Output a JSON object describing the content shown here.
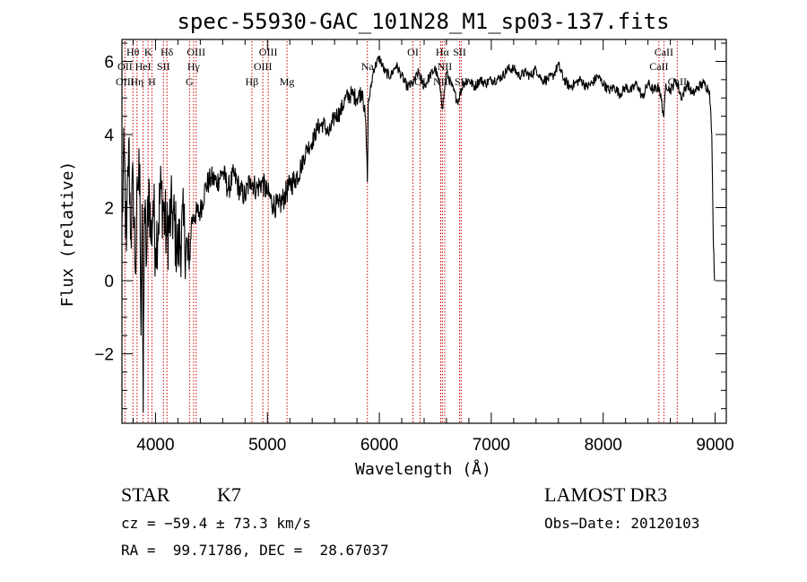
{
  "chart_data": {
    "type": "line",
    "title": "spec-55930-GAC_101N28_M1_sp03-137.fits",
    "xlabel": "Wavelength (Å)",
    "ylabel": "Flux (relative)",
    "xlim": [
      3700,
      9100
    ],
    "ylim": [
      -3.9,
      6.6
    ],
    "xticks": [
      4000,
      5000,
      6000,
      7000,
      8000,
      9000
    ],
    "yticks": [
      -2,
      0,
      2,
      4,
      6
    ],
    "series": [
      {
        "name": "spectrum",
        "x": [
          3700,
          3720,
          3740,
          3760,
          3780,
          3800,
          3820,
          3840,
          3860,
          3870,
          3880,
          3890,
          3900,
          3920,
          3940,
          3960,
          3980,
          4000,
          4050,
          4100,
          4150,
          4200,
          4250,
          4300,
          4320,
          4350,
          4400,
          4450,
          4500,
          4550,
          4600,
          4650,
          4700,
          4750,
          4800,
          4850,
          4900,
          4950,
          5000,
          5050,
          5100,
          5150,
          5200,
          5250,
          5300,
          5350,
          5400,
          5450,
          5500,
          5550,
          5600,
          5650,
          5700,
          5750,
          5800,
          5850,
          5880,
          5893,
          5900,
          5950,
          6000,
          6050,
          6100,
          6150,
          6200,
          6250,
          6300,
          6350,
          6400,
          6450,
          6500,
          6550,
          6563,
          6600,
          6650,
          6700,
          6750,
          6800,
          6850,
          6900,
          6950,
          7000,
          7050,
          7100,
          7150,
          7200,
          7250,
          7300,
          7350,
          7400,
          7450,
          7500,
          7550,
          7600,
          7650,
          7700,
          7750,
          7800,
          7850,
          7900,
          7950,
          8000,
          8050,
          8100,
          8150,
          8200,
          8250,
          8300,
          8350,
          8400,
          8450,
          8500,
          8542,
          8560,
          8600,
          8650,
          8700,
          8750,
          8800,
          8850,
          8900,
          8950,
          8970,
          8985,
          8995
        ],
        "y": [
          1.5,
          3.5,
          0.8,
          3.8,
          1.2,
          2.8,
          0.2,
          2.5,
          3.2,
          -1.5,
          2.1,
          -3.6,
          2.0,
          0.5,
          2.8,
          1.0,
          2.2,
          0.9,
          2.5,
          1.2,
          1.9,
          0.8,
          1.5,
          0.3,
          1.6,
          1.8,
          1.9,
          2.6,
          2.8,
          2.7,
          3.0,
          2.5,
          2.9,
          2.5,
          2.3,
          2.8,
          2.5,
          2.7,
          2.4,
          2.1,
          2.0,
          2.3,
          2.6,
          2.8,
          3.1,
          3.6,
          3.8,
          4.2,
          4.3,
          4.0,
          4.5,
          4.6,
          5.0,
          5.1,
          5.0,
          5.2,
          4.2,
          2.7,
          4.8,
          5.8,
          6.1,
          5.7,
          5.6,
          5.9,
          5.6,
          5.3,
          5.4,
          5.7,
          5.3,
          5.6,
          5.8,
          5.2,
          4.7,
          5.7,
          5.3,
          4.9,
          5.4,
          5.5,
          5.3,
          5.5,
          5.4,
          5.5,
          5.5,
          5.6,
          5.8,
          5.8,
          5.6,
          5.7,
          5.6,
          5.8,
          5.5,
          5.5,
          5.6,
          5.9,
          5.5,
          5.3,
          5.4,
          5.5,
          5.3,
          5.4,
          5.6,
          5.4,
          5.2,
          5.3,
          5.1,
          5.3,
          5.2,
          5.4,
          5.0,
          5.4,
          5.2,
          5.3,
          4.5,
          5.4,
          5.2,
          5.5,
          5.0,
          5.4,
          5.1,
          5.3,
          5.4,
          5.2,
          4.0,
          1.0,
          0.0
        ]
      }
    ],
    "annotations": [
      {
        "label": "Hθ",
        "x": 3798,
        "row": 0
      },
      {
        "label": "OII",
        "x": 3727,
        "row": 1
      },
      {
        "label": "OIII",
        "x": 3727,
        "row": 2
      },
      {
        "label": "K",
        "x": 3934,
        "row": 0
      },
      {
        "label": "HeI",
        "x": 3889,
        "row": 1
      },
      {
        "label": "Hη",
        "x": 3835,
        "row": 2
      },
      {
        "label": "Hδ",
        "x": 4102,
        "row": 0
      },
      {
        "label": "SII",
        "x": 4071,
        "row": 1
      },
      {
        "label": "H",
        "x": 3968,
        "row": 2
      },
      {
        "label": "OIII",
        "x": 4363,
        "row": 0
      },
      {
        "label": "Hγ",
        "x": 4340,
        "row": 1
      },
      {
        "label": "G",
        "x": 4304,
        "row": 2
      },
      {
        "label": "OIII",
        "x": 5007,
        "row": 0
      },
      {
        "label": "OIII",
        "x": 4959,
        "row": 1
      },
      {
        "label": "Hβ",
        "x": 4861,
        "row": 2
      },
      {
        "label": "Mg",
        "x": 5175,
        "row": 2
      },
      {
        "label": "Na",
        "x": 5893,
        "row": 1
      },
      {
        "label": "OI",
        "x": 6300,
        "row": 0
      },
      {
        "label": "OI",
        "x": 6364,
        "row": 2
      },
      {
        "label": "Hα",
        "x": 6563,
        "row": 0
      },
      {
        "label": "SII",
        "x": 6717,
        "row": 0
      },
      {
        "label": "NII",
        "x": 6584,
        "row": 1
      },
      {
        "label": "NII",
        "x": 6548,
        "row": 2
      },
      {
        "label": "SII",
        "x": 6731,
        "row": 2
      },
      {
        "label": "CaII",
        "x": 8542,
        "row": 0
      },
      {
        "label": "CaII",
        "x": 8498,
        "row": 1
      },
      {
        "label": "CaII",
        "x": 8662,
        "row": 2
      }
    ],
    "marker_lines_x": [
      3727,
      3798,
      3835,
      3889,
      3934,
      3968,
      4071,
      4102,
      4304,
      4340,
      4363,
      4861,
      4959,
      5007,
      5175,
      5893,
      6300,
      6364,
      6548,
      6563,
      6584,
      6717,
      6731,
      8498,
      8542,
      8662
    ],
    "colors": {
      "spectrum": "#000000",
      "marker": "#cc0000",
      "axes": "#000000"
    }
  },
  "info": {
    "class": "STAR",
    "subclass": "K7",
    "survey": "LAMOST DR3",
    "cz": "cz = −59.4 ± 73.3 km/s",
    "obs_date": "Obs−Date: 20120103",
    "radec": "RA =  99.71786, DEC =  28.67037"
  }
}
